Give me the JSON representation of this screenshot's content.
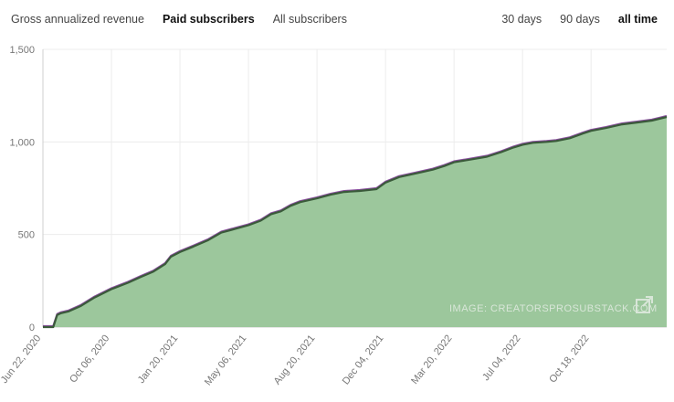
{
  "tabs": {
    "left": [
      {
        "label": "Gross annualized revenue",
        "active": false
      },
      {
        "label": "Paid subscribers",
        "active": true
      },
      {
        "label": "All subscribers",
        "active": false
      }
    ],
    "right": [
      {
        "label": "30 days",
        "active": false
      },
      {
        "label": "90 days",
        "active": false
      },
      {
        "label": "all time",
        "active": true
      }
    ]
  },
  "watermark": "IMAGE: CREATORSPROSUBSTACK.COM",
  "colors": {
    "area_fill": "#9cc79c",
    "line": "#3a5a3a",
    "line_alt": "#8a4f9e",
    "grid": "#ececec",
    "axis": "#cfcfcf"
  },
  "chart_data": {
    "type": "area",
    "xlabel": "",
    "ylabel": "",
    "ylim": [
      0,
      1500
    ],
    "yticks": [
      0,
      500,
      1000,
      1500
    ],
    "ytick_labels": [
      "0",
      "500",
      "1,000",
      "1,500"
    ],
    "grid": true,
    "x_range": [
      "2020-06-22",
      "2023-02-12"
    ],
    "xticks": [
      "2020-06-22",
      "2020-10-06",
      "2021-01-20",
      "2021-05-06",
      "2021-08-20",
      "2021-12-04",
      "2022-03-20",
      "2022-07-04",
      "2022-10-18"
    ],
    "xtick_labels": [
      "Jun 22, 2020",
      "Oct 06, 2020",
      "Jan 20, 2021",
      "May 06, 2021",
      "Aug 20, 2021",
      "Dec 04, 2021",
      "Mar 20, 2022",
      "Jul 04, 2022",
      "Oct 18, 2022"
    ],
    "series": [
      {
        "x": [
          "2020-06-22",
          "2020-07-08",
          "2020-07-14",
          "2020-07-20",
          "2020-08-01",
          "2020-08-20",
          "2020-09-10",
          "2020-10-06",
          "2020-11-01",
          "2020-11-20",
          "2020-12-10",
          "2020-12-28",
          "2021-01-06",
          "2021-01-20",
          "2021-02-10",
          "2021-03-05",
          "2021-03-25",
          "2021-04-15",
          "2021-05-06",
          "2021-05-25",
          "2021-06-10",
          "2021-06-25",
          "2021-07-10",
          "2021-07-25",
          "2021-08-20",
          "2021-09-10",
          "2021-10-01",
          "2021-10-25",
          "2021-11-20",
          "2021-12-04",
          "2021-12-25",
          "2022-01-20",
          "2022-02-15",
          "2022-03-05",
          "2022-03-20",
          "2022-04-15",
          "2022-05-10",
          "2022-06-01",
          "2022-06-20",
          "2022-07-04",
          "2022-07-20",
          "2022-08-10",
          "2022-08-25",
          "2022-09-15",
          "2022-10-05",
          "2022-10-18",
          "2022-11-10",
          "2022-12-05",
          "2022-12-28",
          "2023-01-20",
          "2023-02-12"
        ],
        "values": [
          0,
          0,
          65,
          75,
          85,
          115,
          160,
          205,
          240,
          270,
          300,
          340,
          380,
          405,
          435,
          470,
          510,
          530,
          550,
          575,
          610,
          625,
          655,
          675,
          695,
          715,
          730,
          735,
          745,
          780,
          810,
          830,
          850,
          870,
          890,
          905,
          920,
          945,
          970,
          985,
          995,
          1000,
          1005,
          1020,
          1045,
          1060,
          1075,
          1095,
          1105,
          1115,
          1135
        ]
      }
    ]
  }
}
